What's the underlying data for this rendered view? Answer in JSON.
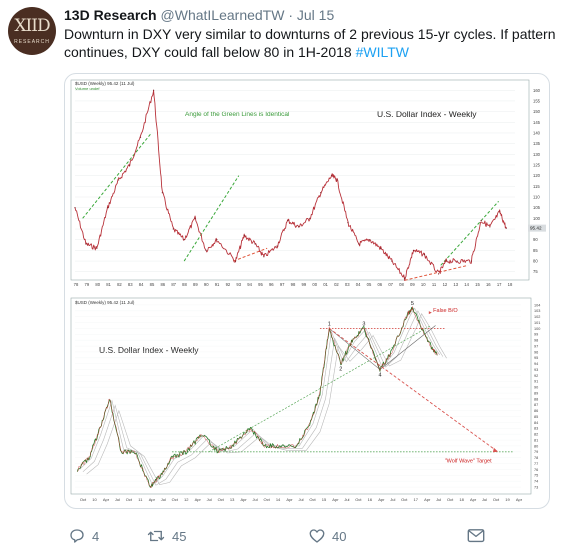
{
  "tweet": {
    "author_name": "13D Research",
    "handle": "@WhatILearnedTW",
    "separator": "·",
    "time": "Jul 15",
    "text_main": "Downturn in DXY very similar to downturns of 2 previous 15-yr cycles. If pattern continues, DXY could fall below 80 in 1H-2018 ",
    "hashtag": "#WILTW",
    "avatar_monogram": "XIID",
    "avatar_subtext": "RESEARCH"
  },
  "actions": {
    "reply_count": "4",
    "retweet_count": "45",
    "like_count": "40",
    "icons": [
      "reply-icon",
      "retweet-icon",
      "like-icon",
      "message-icon"
    ]
  },
  "chart_data": [
    {
      "type": "line",
      "legend": [
        "$USD (Weekly) 95.42 (11 Jul)",
        "Volume undef"
      ],
      "title": "U.S. Dollar Index - Weekly",
      "annotations": [
        "Angle of the Green Lines is Identical"
      ],
      "price_label": "95.42",
      "x_ticks": [
        "78",
        "79",
        "80",
        "81",
        "82",
        "83",
        "84",
        "85",
        "86",
        "87",
        "88",
        "89",
        "90",
        "91",
        "92",
        "93",
        "94",
        "95",
        "96",
        "97",
        "98",
        "99",
        "00",
        "01",
        "02",
        "03",
        "04",
        "05",
        "06",
        "07",
        "08",
        "09",
        "10",
        "11",
        "12",
        "13",
        "14",
        "15",
        "16",
        "17",
        "18"
      ],
      "y_ticks": [
        "160",
        "155",
        "150",
        "145",
        "140",
        "135",
        "130",
        "125",
        "120",
        "115",
        "110",
        "105",
        "100",
        "95",
        "90",
        "85",
        "80",
        "75"
      ],
      "ylim": [
        73,
        162
      ],
      "x": [
        1978.0,
        1979.0,
        1980.0,
        1981.0,
        1982.0,
        1983.0,
        1984.0,
        1985.2,
        1986.0,
        1987.0,
        1988.0,
        1989.0,
        1990.0,
        1991.0,
        1992.7,
        1993.5,
        1994.5,
        1995.3,
        1996.5,
        1997.5,
        1998.5,
        1999.5,
        2000.5,
        2001.5,
        2002.0,
        2003.0,
        2004.0,
        2005.0,
        2006.0,
        2007.0,
        2008.2,
        2009.0,
        2010.0,
        2011.3,
        2012.0,
        2013.0,
        2014.3,
        2015.2,
        2016.0,
        2016.9,
        2017.5
      ],
      "y": [
        105,
        88,
        86,
        105,
        118,
        125,
        138,
        160,
        112,
        95,
        90,
        100,
        85,
        90,
        80,
        92,
        88,
        82,
        87,
        99,
        96,
        100,
        112,
        120,
        118,
        98,
        88,
        90,
        86,
        80,
        72,
        85,
        83,
        74,
        80,
        80,
        80,
        99,
        96,
        103,
        95.42
      ],
      "green_lines": [
        [
          [
            1978.7,
            100
          ],
          [
            1985.0,
            140
          ]
        ],
        [
          [
            1988.0,
            80
          ],
          [
            1993.0,
            120
          ]
        ],
        [
          [
            2011.5,
            78
          ],
          [
            2016.8,
            108
          ]
        ]
      ],
      "red_lines": [
        [
          [
            1992.5,
            80
          ],
          [
            1995.6,
            86
          ]
        ],
        [
          [
            2008.2,
            71
          ],
          [
            2014.0,
            78
          ]
        ]
      ]
    },
    {
      "type": "line",
      "legend": [
        "$USD (Weekly) 95.42 (11 Jul)"
      ],
      "title": "U.S. Dollar Index - Weekly",
      "annotations": [
        "False B/O",
        "\"Wolf Wave\" Target",
        "1",
        "2",
        "3",
        "4",
        "5"
      ],
      "x_ticks": [
        "Oct",
        "10",
        "Apr",
        "Jul",
        "Oct",
        "11",
        "Apr",
        "Jul",
        "Oct",
        "12",
        "Apr",
        "Jul",
        "Oct",
        "13",
        "Apr",
        "Jul",
        "Oct",
        "14",
        "Apr",
        "Jul",
        "Oct",
        "15",
        "Apr",
        "Jul",
        "Oct",
        "16",
        "Apr",
        "Jul",
        "Oct",
        "17",
        "Apr",
        "Jul",
        "Oct",
        "18",
        "Apr",
        "Jul",
        "Oct",
        "19",
        "Apr"
      ],
      "y_ticks": [
        "104",
        "103",
        "102",
        "101",
        "100",
        "99",
        "98",
        "97",
        "96",
        "95",
        "94",
        "93",
        "92",
        "91",
        "90",
        "89",
        "88",
        "87",
        "86",
        "85",
        "84",
        "83",
        "82",
        "81",
        "80",
        "79",
        "78",
        "77",
        "76",
        "75",
        "74",
        "73"
      ],
      "ylim": [
        72.5,
        104.5
      ],
      "x": [
        2009.75,
        2010.0,
        2010.2,
        2010.45,
        2010.7,
        2011.0,
        2011.33,
        2011.55,
        2011.8,
        2012.1,
        2012.45,
        2012.8,
        2013.1,
        2013.5,
        2013.8,
        2014.1,
        2014.5,
        2014.8,
        2015.0,
        2015.2,
        2015.45,
        2015.7,
        2015.95,
        2016.3,
        2016.55,
        2016.9,
        2017.0,
        2017.2,
        2017.4,
        2017.54
      ],
      "y": [
        76,
        78,
        82,
        88,
        79,
        79,
        73,
        75,
        78,
        79,
        82,
        79,
        80,
        83,
        80,
        80,
        80,
        84,
        89,
        100,
        94,
        98,
        100,
        93,
        96,
        102.5,
        103.5,
        100,
        97,
        95.42
      ],
      "points": [
        {
          "label": "1",
          "x": 2015.2,
          "y": 100
        },
        {
          "label": "2",
          "x": 2015.45,
          "y": 94
        },
        {
          "label": "3",
          "x": 2015.95,
          "y": 100
        },
        {
          "label": "4",
          "x": 2016.3,
          "y": 93
        },
        {
          "label": "5",
          "x": 2017.0,
          "y": 103.5
        }
      ],
      "levels": [
        {
          "color": "red",
          "y": 100
        },
        {
          "color": "green",
          "y": 79
        }
      ],
      "target": 79
    }
  ]
}
